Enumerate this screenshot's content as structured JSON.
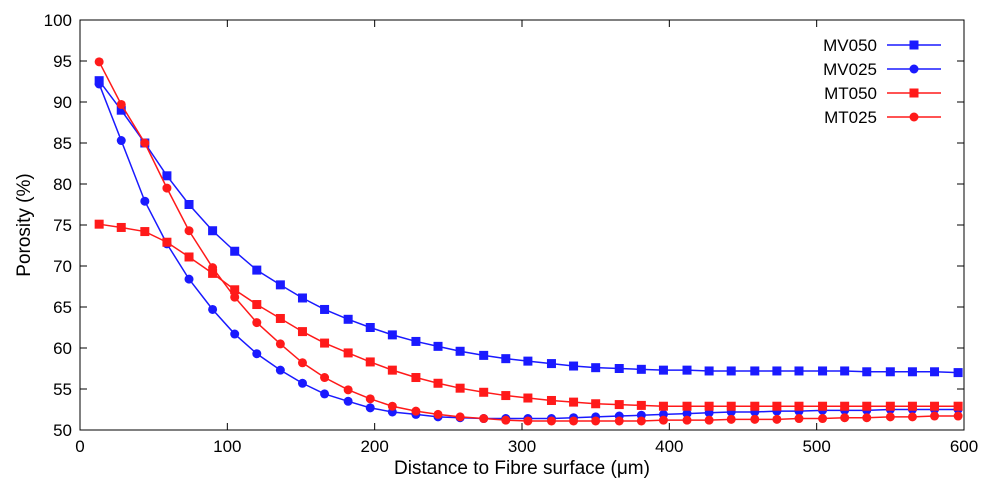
{
  "chart_data": {
    "type": "line",
    "xlabel": "Distance to Fibre surface (μm)",
    "ylabel": "Porosity (%)",
    "xlim": [
      0,
      600
    ],
    "ylim": [
      50,
      100
    ],
    "xticks": [
      0,
      100,
      200,
      300,
      400,
      500,
      600
    ],
    "yticks": [
      50,
      55,
      60,
      65,
      70,
      75,
      80,
      85,
      90,
      95,
      100
    ],
    "grid": false,
    "legend_position": "top-right",
    "x": [
      13,
      28,
      44,
      59,
      74,
      90,
      105,
      120,
      136,
      151,
      166,
      182,
      197,
      212,
      228,
      243,
      258,
      274,
      289,
      304,
      320,
      335,
      350,
      366,
      381,
      396,
      412,
      427,
      442,
      458,
      473,
      488,
      504,
      519,
      534,
      550,
      565,
      580,
      596
    ],
    "series": [
      {
        "name": "MV050",
        "color": "#1a1aff",
        "marker": "square",
        "values": [
          92.6,
          89.0,
          85.0,
          81.0,
          77.5,
          74.3,
          71.8,
          69.5,
          67.7,
          66.1,
          64.7,
          63.5,
          62.5,
          61.6,
          60.8,
          60.2,
          59.6,
          59.1,
          58.7,
          58.4,
          58.1,
          57.8,
          57.6,
          57.5,
          57.4,
          57.3,
          57.3,
          57.2,
          57.2,
          57.2,
          57.2,
          57.2,
          57.2,
          57.2,
          57.1,
          57.1,
          57.1,
          57.1,
          57.0
        ]
      },
      {
        "name": "MV025",
        "color": "#1a1aff",
        "marker": "circle",
        "values": [
          92.2,
          85.3,
          77.9,
          72.7,
          68.4,
          64.7,
          61.7,
          59.3,
          57.3,
          55.7,
          54.4,
          53.5,
          52.7,
          52.2,
          51.9,
          51.6,
          51.5,
          51.4,
          51.4,
          51.4,
          51.4,
          51.5,
          51.6,
          51.7,
          51.8,
          51.9,
          52.0,
          52.1,
          52.2,
          52.2,
          52.3,
          52.3,
          52.4,
          52.4,
          52.4,
          52.5,
          52.5,
          52.5,
          52.5
        ]
      },
      {
        "name": "MT050",
        "color": "#ff1a1a",
        "marker": "square",
        "values": [
          75.1,
          74.7,
          74.2,
          72.9,
          71.1,
          69.1,
          67.1,
          65.3,
          63.6,
          62.0,
          60.6,
          59.4,
          58.3,
          57.3,
          56.4,
          55.7,
          55.1,
          54.6,
          54.2,
          53.9,
          53.6,
          53.4,
          53.2,
          53.1,
          53.0,
          52.9,
          52.9,
          52.9,
          52.9,
          52.9,
          52.9,
          52.9,
          52.9,
          52.9,
          52.9,
          52.9,
          52.9,
          52.9,
          52.9
        ]
      },
      {
        "name": "MT025",
        "color": "#ff1a1a",
        "marker": "circle",
        "values": [
          94.9,
          89.7,
          85.0,
          79.5,
          74.3,
          69.8,
          66.2,
          63.1,
          60.5,
          58.2,
          56.4,
          54.9,
          53.8,
          52.9,
          52.3,
          51.9,
          51.6,
          51.4,
          51.2,
          51.1,
          51.1,
          51.1,
          51.1,
          51.1,
          51.1,
          51.2,
          51.2,
          51.2,
          51.3,
          51.3,
          51.3,
          51.4,
          51.4,
          51.5,
          51.5,
          51.6,
          51.6,
          51.7,
          51.7
        ]
      }
    ]
  }
}
